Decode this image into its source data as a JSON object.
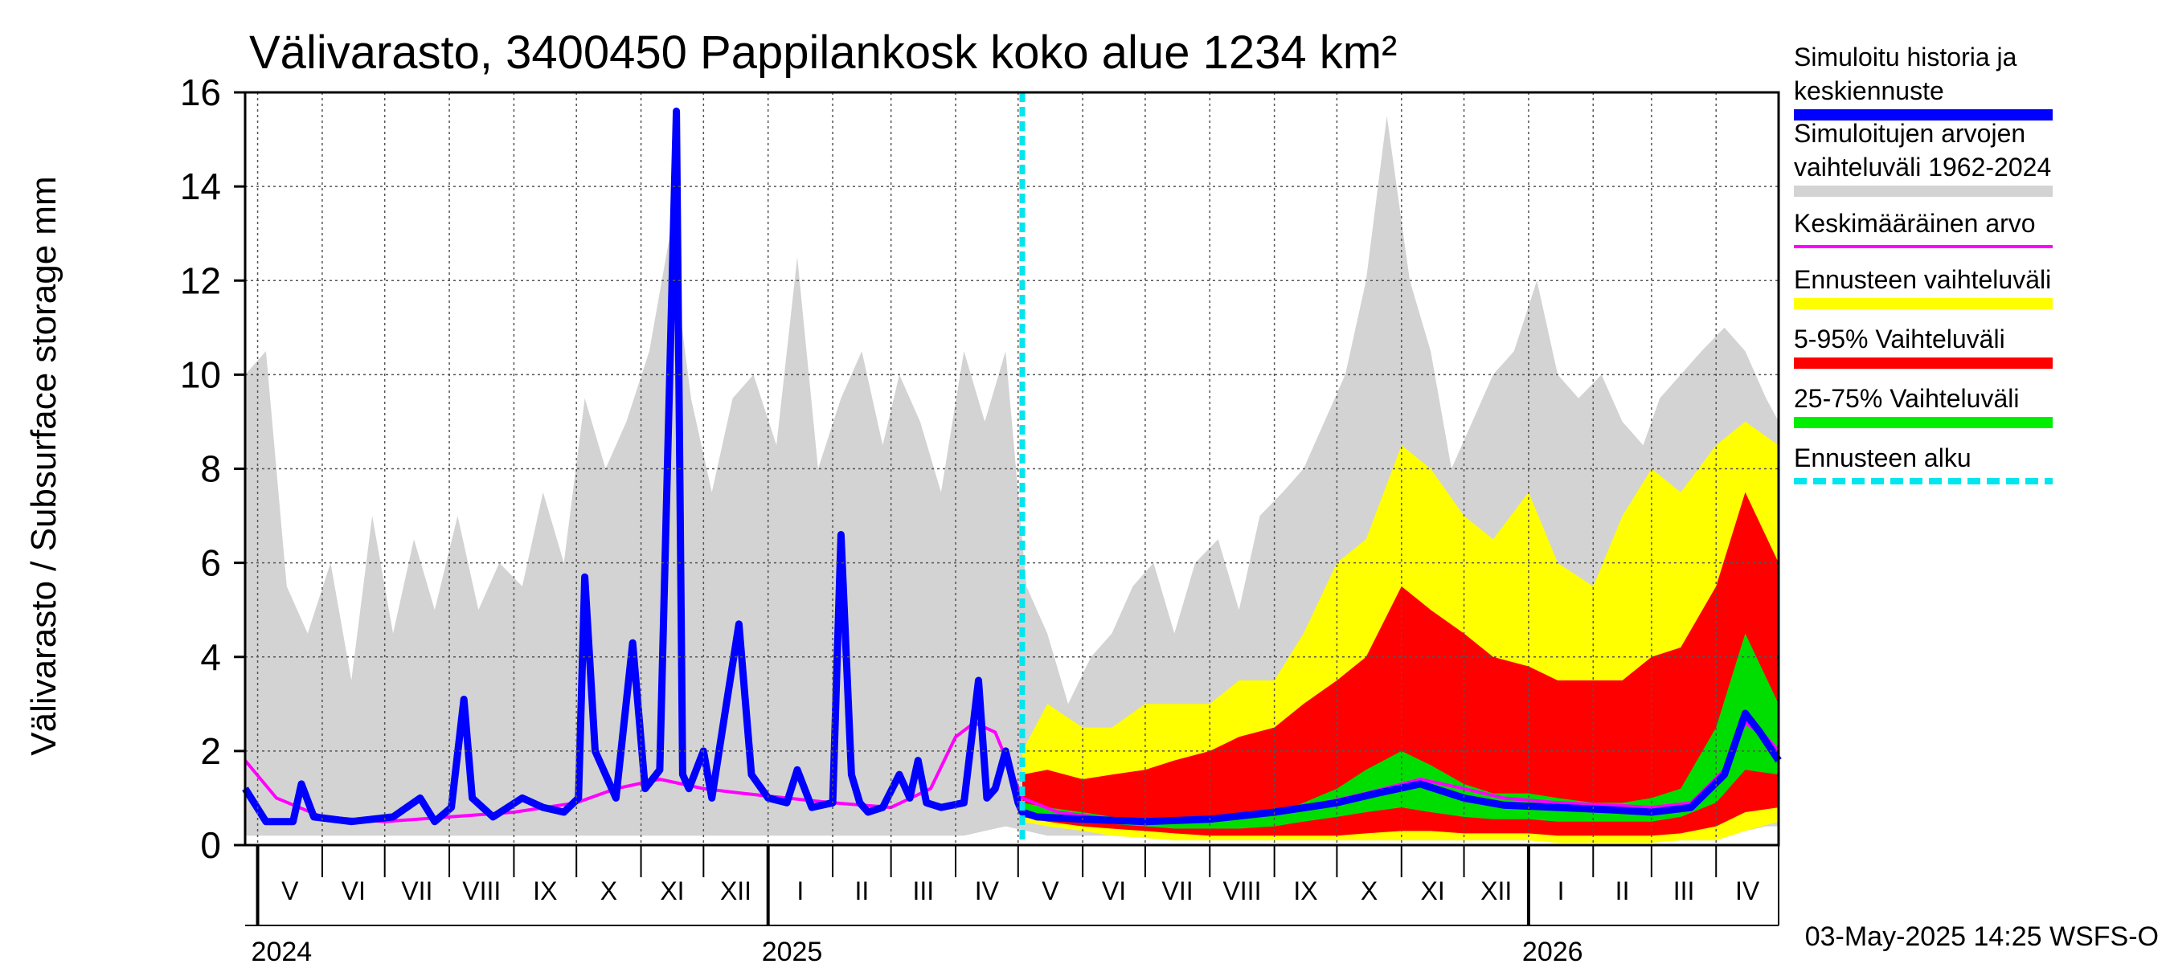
{
  "chart_data": {
    "type": "area",
    "title": "Välivarasto, 3400450 Pappilankosk koko alue 1234 km²",
    "ylabel": "Välivarasto / Subsurface storage  mm",
    "ylim": [
      0,
      16
    ],
    "yticks": [
      0,
      2,
      4,
      6,
      8,
      10,
      12,
      14,
      16
    ],
    "x_start": "2024-04-25",
    "x_end": "2026-05-01",
    "forecast_start": "2025-05-03",
    "months": [
      {
        "label": "V",
        "start": "2024-05-01",
        "end": "2024-06-01"
      },
      {
        "label": "VI",
        "start": "2024-06-01",
        "end": "2024-07-01"
      },
      {
        "label": "VII",
        "start": "2024-07-01",
        "end": "2024-08-01"
      },
      {
        "label": "VIII",
        "start": "2024-08-01",
        "end": "2024-09-01"
      },
      {
        "label": "IX",
        "start": "2024-09-01",
        "end": "2024-10-01"
      },
      {
        "label": "X",
        "start": "2024-10-01",
        "end": "2024-11-01"
      },
      {
        "label": "XI",
        "start": "2024-11-01",
        "end": "2024-12-01"
      },
      {
        "label": "XII",
        "start": "2024-12-01",
        "end": "2025-01-01"
      },
      {
        "label": "I",
        "start": "2025-01-01",
        "end": "2025-02-01"
      },
      {
        "label": "II",
        "start": "2025-02-01",
        "end": "2025-03-01"
      },
      {
        "label": "III",
        "start": "2025-03-01",
        "end": "2025-04-01"
      },
      {
        "label": "IV",
        "start": "2025-04-01",
        "end": "2025-05-01"
      },
      {
        "label": "V",
        "start": "2025-05-01",
        "end": "2025-06-01"
      },
      {
        "label": "VI",
        "start": "2025-06-01",
        "end": "2025-07-01"
      },
      {
        "label": "VII",
        "start": "2025-07-01",
        "end": "2025-08-01"
      },
      {
        "label": "VIII",
        "start": "2025-08-01",
        "end": "2025-09-01"
      },
      {
        "label": "IX",
        "start": "2025-09-01",
        "end": "2025-10-01"
      },
      {
        "label": "X",
        "start": "2025-10-01",
        "end": "2025-11-01"
      },
      {
        "label": "XI",
        "start": "2025-11-01",
        "end": "2025-12-01"
      },
      {
        "label": "XII",
        "start": "2025-12-01",
        "end": "2026-01-01"
      },
      {
        "label": "I",
        "start": "2026-01-01",
        "end": "2026-02-01"
      },
      {
        "label": "II",
        "start": "2026-02-01",
        "end": "2026-03-01"
      },
      {
        "label": "III",
        "start": "2026-03-01",
        "end": "2026-04-01"
      },
      {
        "label": "IV",
        "start": "2026-04-01",
        "end": "2026-05-01"
      }
    ],
    "years": [
      {
        "label": "2024",
        "date": "2024-05-01"
      },
      {
        "label": "2025",
        "date": "2025-01-01"
      },
      {
        "label": "2026",
        "date": "2026-01-01"
      }
    ],
    "series": [
      {
        "name": "Simuloitujen arvojen vaihteluväli 1962-2024",
        "color": "#d3d3d3",
        "kind": "band",
        "x": [
          "2024-04-25",
          "2024-05-05",
          "2024-05-15",
          "2024-05-25",
          "2024-06-05",
          "2024-06-15",
          "2024-06-25",
          "2024-07-05",
          "2024-07-15",
          "2024-07-25",
          "2024-08-05",
          "2024-08-15",
          "2024-08-25",
          "2024-09-05",
          "2024-09-15",
          "2024-09-25",
          "2024-10-05",
          "2024-10-15",
          "2024-10-25",
          "2024-11-05",
          "2024-11-15",
          "2024-11-25",
          "2024-12-05",
          "2024-12-15",
          "2024-12-25",
          "2025-01-05",
          "2025-01-15",
          "2025-01-25",
          "2025-02-05",
          "2025-02-15",
          "2025-02-25",
          "2025-03-05",
          "2025-03-15",
          "2025-03-25",
          "2025-04-05",
          "2025-04-15",
          "2025-04-25",
          "2025-05-05",
          "2025-05-15",
          "2025-05-25",
          "2025-06-05",
          "2025-06-15",
          "2025-06-25",
          "2025-07-05",
          "2025-07-15",
          "2025-07-25",
          "2025-08-05",
          "2025-08-15",
          "2025-08-25",
          "2025-09-05",
          "2025-09-15",
          "2025-09-25",
          "2025-10-05",
          "2025-10-15",
          "2025-10-25",
          "2025-11-05",
          "2025-11-15",
          "2025-11-25",
          "2025-12-05",
          "2025-12-15",
          "2025-12-25",
          "2026-01-05",
          "2026-01-15",
          "2026-01-25",
          "2026-02-05",
          "2026-02-15",
          "2026-02-25",
          "2026-03-05",
          "2026-03-15",
          "2026-03-25",
          "2026-04-05",
          "2026-04-15",
          "2026-04-25",
          "2026-05-01"
        ],
        "low": [
          0.2,
          0.2,
          0.2,
          0.2,
          0.2,
          0.2,
          0.2,
          0.2,
          0.2,
          0.2,
          0.2,
          0.2,
          0.2,
          0.2,
          0.2,
          0.2,
          0.2,
          0.2,
          0.2,
          0.2,
          0.2,
          0.2,
          0.2,
          0.2,
          0.2,
          0.2,
          0.2,
          0.2,
          0.2,
          0.2,
          0.2,
          0.2,
          0.2,
          0.2,
          0.2,
          0.3,
          0.4,
          0.3,
          0.2,
          0.2,
          0.2,
          0.2,
          0.2,
          0.2,
          0.2,
          0.2,
          0.2,
          0.2,
          0.2,
          0.2,
          0.2,
          0.2,
          0.2,
          0.2,
          0.2,
          0.2,
          0.2,
          0.2,
          0.2,
          0.2,
          0.2,
          0.2,
          0.2,
          0.2,
          0.2,
          0.2,
          0.2,
          0.2,
          0.2,
          0.2,
          0.2,
          0.3,
          0.4,
          0.4
        ],
        "high": [
          10.0,
          10.5,
          5.5,
          4.5,
          6.0,
          3.5,
          7.0,
          4.5,
          6.5,
          5.0,
          7.0,
          5.0,
          6.0,
          5.5,
          7.5,
          6.0,
          9.5,
          8.0,
          9.0,
          10.5,
          13.0,
          9.5,
          7.5,
          9.5,
          10.0,
          8.5,
          12.5,
          8.0,
          9.5,
          10.5,
          8.5,
          10.0,
          9.0,
          7.5,
          10.5,
          9.0,
          10.5,
          5.5,
          4.5,
          3.0,
          4.0,
          4.5,
          5.5,
          6.0,
          4.5,
          6.0,
          6.5,
          5.0,
          7.0,
          7.5,
          8.0,
          9.0,
          10.0,
          12.0,
          15.5,
          12.0,
          10.5,
          8.0,
          9.0,
          10.0,
          10.5,
          12.0,
          10.0,
          9.5,
          10.0,
          9.0,
          8.5,
          9.5,
          10.0,
          10.5,
          11.0,
          10.5,
          9.5,
          9.0
        ]
      },
      {
        "name": "Ennusteen vaihteluväli",
        "color": "#ffff00",
        "kind": "band",
        "x": [
          "2025-05-03",
          "2025-05-15",
          "2025-06-01",
          "2025-06-15",
          "2025-07-01",
          "2025-07-15",
          "2025-08-01",
          "2025-08-15",
          "2025-09-01",
          "2025-09-15",
          "2025-10-01",
          "2025-10-15",
          "2025-11-01",
          "2025-11-15",
          "2025-12-01",
          "2025-12-15",
          "2026-01-01",
          "2026-01-15",
          "2026-02-01",
          "2026-02-15",
          "2026-03-01",
          "2026-03-15",
          "2026-04-01",
          "2026-04-15",
          "2026-05-01"
        ],
        "low": [
          0.5,
          0.4,
          0.3,
          0.2,
          0.15,
          0.1,
          0.1,
          0.1,
          0.1,
          0.1,
          0.1,
          0.1,
          0.1,
          0.1,
          0.1,
          0.1,
          0.1,
          0.05,
          0.05,
          0.05,
          0.05,
          0.1,
          0.1,
          0.3,
          0.5
        ],
        "high": [
          2.0,
          3.0,
          2.5,
          2.5,
          3.0,
          3.0,
          3.0,
          3.5,
          3.5,
          4.5,
          6.0,
          6.5,
          8.5,
          8.0,
          7.0,
          6.5,
          7.5,
          6.0,
          5.5,
          7.0,
          8.0,
          7.5,
          8.5,
          9.0,
          8.5
        ]
      },
      {
        "name": "5-95% Vaihteluväli",
        "color": "#ff0000",
        "kind": "band",
        "x": [
          "2025-05-03",
          "2025-05-15",
          "2025-06-01",
          "2025-06-15",
          "2025-07-01",
          "2025-07-15",
          "2025-08-01",
          "2025-08-15",
          "2025-09-01",
          "2025-09-15",
          "2025-10-01",
          "2025-10-15",
          "2025-11-01",
          "2025-11-15",
          "2025-12-01",
          "2025-12-15",
          "2026-01-01",
          "2026-01-15",
          "2026-02-01",
          "2026-02-15",
          "2026-03-01",
          "2026-03-15",
          "2026-04-01",
          "2026-04-15",
          "2026-05-01"
        ],
        "low": [
          0.6,
          0.5,
          0.4,
          0.35,
          0.3,
          0.25,
          0.2,
          0.2,
          0.2,
          0.2,
          0.2,
          0.25,
          0.3,
          0.3,
          0.25,
          0.25,
          0.25,
          0.2,
          0.2,
          0.2,
          0.2,
          0.25,
          0.4,
          0.7,
          0.8
        ],
        "high": [
          1.5,
          1.6,
          1.4,
          1.5,
          1.6,
          1.8,
          2.0,
          2.3,
          2.5,
          3.0,
          3.5,
          4.0,
          5.5,
          5.0,
          4.5,
          4.0,
          3.8,
          3.5,
          3.5,
          3.5,
          4.0,
          4.2,
          5.5,
          7.5,
          6.0
        ]
      },
      {
        "name": "25-75% Vaihteluväli",
        "color": "#00dd00",
        "kind": "band",
        "x": [
          "2025-05-03",
          "2025-05-15",
          "2025-06-01",
          "2025-06-15",
          "2025-07-01",
          "2025-07-15",
          "2025-08-01",
          "2025-08-15",
          "2025-09-01",
          "2025-09-15",
          "2025-10-01",
          "2025-10-15",
          "2025-11-01",
          "2025-11-15",
          "2025-12-01",
          "2025-12-15",
          "2026-01-01",
          "2026-01-15",
          "2026-02-01",
          "2026-02-15",
          "2026-03-01",
          "2026-03-15",
          "2026-04-01",
          "2026-04-15",
          "2026-05-01"
        ],
        "low": [
          0.7,
          0.6,
          0.5,
          0.45,
          0.4,
          0.35,
          0.35,
          0.35,
          0.4,
          0.5,
          0.6,
          0.7,
          0.8,
          0.7,
          0.6,
          0.55,
          0.55,
          0.5,
          0.5,
          0.5,
          0.5,
          0.6,
          0.9,
          1.6,
          1.5
        ],
        "high": [
          0.9,
          0.8,
          0.7,
          0.6,
          0.55,
          0.5,
          0.5,
          0.55,
          0.65,
          0.9,
          1.2,
          1.6,
          2.0,
          1.7,
          1.3,
          1.1,
          1.1,
          1.0,
          0.9,
          0.9,
          1.0,
          1.2,
          2.5,
          4.5,
          3.0
        ]
      },
      {
        "name": "Keskimääräinen arvo",
        "color": "#ff00ff",
        "kind": "line",
        "x": [
          "2024-04-25",
          "2024-05-10",
          "2024-06-01",
          "2024-07-01",
          "2024-08-01",
          "2024-09-01",
          "2024-10-01",
          "2024-10-20",
          "2024-11-10",
          "2024-12-01",
          "2024-12-20",
          "2025-01-10",
          "2025-02-01",
          "2025-03-01",
          "2025-03-20",
          "2025-04-01",
          "2025-04-10",
          "2025-04-20",
          "2025-05-03",
          "2025-05-20",
          "2025-06-15",
          "2025-07-15",
          "2025-08-15",
          "2025-09-15",
          "2025-10-15",
          "2025-11-10",
          "2025-12-01",
          "2025-12-20",
          "2026-01-15",
          "2026-02-10",
          "2026-03-01",
          "2026-03-20",
          "2026-04-05",
          "2026-04-15",
          "2026-04-25",
          "2026-05-01"
        ],
        "y": [
          1.8,
          1.0,
          0.6,
          0.5,
          0.6,
          0.7,
          0.9,
          1.2,
          1.4,
          1.2,
          1.1,
          1.0,
          0.9,
          0.8,
          1.2,
          2.3,
          2.6,
          2.4,
          1.0,
          0.7,
          0.55,
          0.5,
          0.6,
          0.8,
          1.1,
          1.4,
          1.2,
          1.0,
          0.9,
          0.85,
          0.8,
          0.9,
          1.6,
          2.6,
          2.3,
          2.0
        ]
      },
      {
        "name": "Simuloitu historia ja keskiennuste",
        "color": "#0000ff",
        "kind": "line",
        "x": [
          "2024-04-25",
          "2024-05-05",
          "2024-05-18",
          "2024-05-22",
          "2024-05-28",
          "2024-06-15",
          "2024-07-05",
          "2024-07-18",
          "2024-07-25",
          "2024-08-02",
          "2024-08-08",
          "2024-08-12",
          "2024-08-22",
          "2024-09-05",
          "2024-09-15",
          "2024-09-25",
          "2024-10-02",
          "2024-10-05",
          "2024-10-10",
          "2024-10-20",
          "2024-10-28",
          "2024-11-03",
          "2024-11-10",
          "2024-11-18",
          "2024-11-21",
          "2024-11-24",
          "2024-12-01",
          "2024-12-05",
          "2024-12-12",
          "2024-12-18",
          "2024-12-24",
          "2025-01-01",
          "2025-01-10",
          "2025-01-15",
          "2025-01-22",
          "2025-02-01",
          "2025-02-05",
          "2025-02-10",
          "2025-02-14",
          "2025-02-18",
          "2025-02-25",
          "2025-03-05",
          "2025-03-10",
          "2025-03-14",
          "2025-03-18",
          "2025-03-25",
          "2025-04-05",
          "2025-04-12",
          "2025-04-16",
          "2025-04-20",
          "2025-04-25",
          "2025-05-01",
          "2025-05-03",
          "2025-05-10",
          "2025-06-01",
          "2025-07-01",
          "2025-08-01",
          "2025-09-01",
          "2025-10-01",
          "2025-10-20",
          "2025-11-10",
          "2025-12-01",
          "2025-12-20",
          "2026-01-15",
          "2026-02-10",
          "2026-03-01",
          "2026-03-20",
          "2026-04-05",
          "2026-04-15",
          "2026-04-22",
          "2026-05-01"
        ],
        "y": [
          1.2,
          0.5,
          0.5,
          1.3,
          0.6,
          0.5,
          0.6,
          1.0,
          0.5,
          0.8,
          3.1,
          1.0,
          0.6,
          1.0,
          0.8,
          0.7,
          1.0,
          5.7,
          2.0,
          1.0,
          4.3,
          1.2,
          1.6,
          15.6,
          1.5,
          1.2,
          2.0,
          1.0,
          3.0,
          4.7,
          1.5,
          1.0,
          0.9,
          1.6,
          0.8,
          0.9,
          6.6,
          1.5,
          0.9,
          0.7,
          0.8,
          1.5,
          1.0,
          1.8,
          0.9,
          0.8,
          0.9,
          3.5,
          1.0,
          1.2,
          2.0,
          0.9,
          0.7,
          0.6,
          0.55,
          0.5,
          0.55,
          0.7,
          0.9,
          1.1,
          1.3,
          1.0,
          0.85,
          0.8,
          0.75,
          0.7,
          0.8,
          1.5,
          2.8,
          2.4,
          1.8
        ]
      }
    ],
    "legend": [
      {
        "label": "Simuloitu historia ja\nkeskiennuste",
        "color": "#0000ff",
        "style": "solid"
      },
      {
        "label": "Simuloitujen arvojen\nvaihteluväli 1962-2024",
        "color": "#d3d3d3",
        "style": "solid"
      },
      {
        "label": "Keskimääräinen arvo",
        "color": "#ff00ff",
        "style": "thin"
      },
      {
        "label": "Ennusteen vaihteluväli",
        "color": "#ffff00",
        "style": "solid"
      },
      {
        "label": "5-95% Vaihteluväli",
        "color": "#ff0000",
        "style": "solid"
      },
      {
        "label": "25-75% Vaihteluväli",
        "color": "#00ee00",
        "style": "solid"
      },
      {
        "label": "Ennusteen alku",
        "color": "#00e5ee",
        "style": "dashed"
      }
    ],
    "legend_position": "right",
    "grid": true,
    "footer": "03-May-2025 14:25 WSFS-O"
  }
}
